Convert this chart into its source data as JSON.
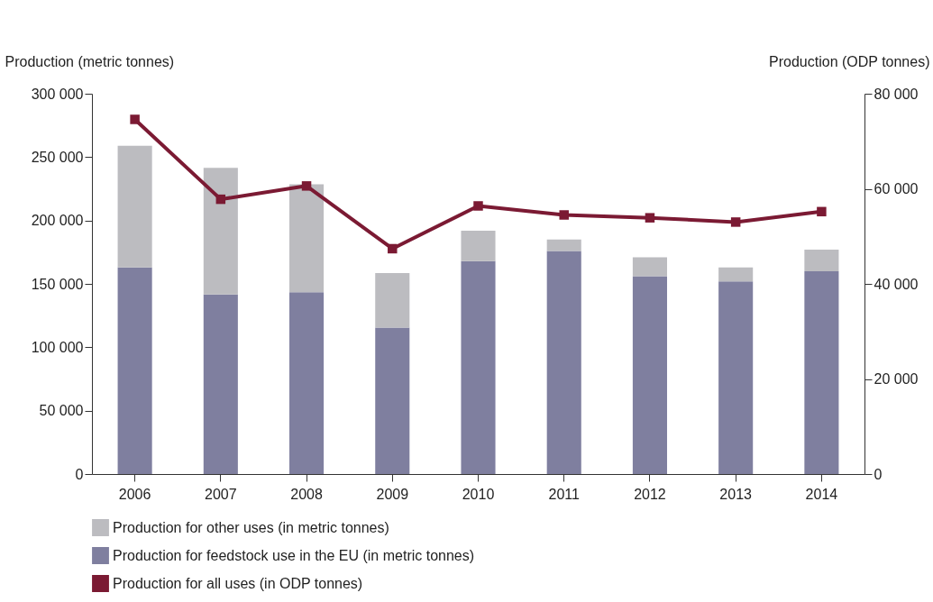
{
  "chart_data": {
    "type": "bar",
    "stacked": true,
    "categories": [
      "2006",
      "2007",
      "2008",
      "2009",
      "2010",
      "2011",
      "2012",
      "2013",
      "2014"
    ],
    "ylabel": "Production (metric tonnes)",
    "y2label": "Production (ODP tonnes)",
    "series": [
      {
        "name": "Production for feedstock use in the EU (in metric tonnes)",
        "color": "#7f7f9f",
        "values": [
          163000,
          141600,
          143500,
          115600,
          168000,
          176000,
          156000,
          152000,
          160000
        ]
      },
      {
        "name": "Production for other uses (in metric tonnes)",
        "color": "#bcbcc0",
        "values": [
          96000,
          100000,
          85000,
          43000,
          24000,
          9000,
          15000,
          11000,
          17000
        ]
      },
      {
        "name": "Production for all uses (in ODP tonnes)",
        "type": "line",
        "axis": "y2",
        "color": "#7b1a33",
        "marker": "square",
        "values": [
          74600,
          57800,
          60600,
          47400,
          56400,
          54500,
          53900,
          53000,
          55200
        ]
      }
    ],
    "ylim": [
      0,
      300000
    ],
    "yticks": [
      {
        "value": 0,
        "label": "0"
      },
      {
        "value": 50000,
        "label": "50 000"
      },
      {
        "value": 100000,
        "label": "100 000"
      },
      {
        "value": 150000,
        "label": "150 000"
      },
      {
        "value": 200000,
        "label": "200 000"
      },
      {
        "value": 250000,
        "label": "250 000"
      },
      {
        "value": 300000,
        "label": "300 000"
      }
    ],
    "y2lim": [
      0,
      80000
    ],
    "y2ticks": [
      {
        "value": 0,
        "label": "0"
      },
      {
        "value": 20000,
        "label": "20 000"
      },
      {
        "value": 40000,
        "label": "40 000"
      },
      {
        "value": 60000,
        "label": "60 000"
      },
      {
        "value": 80000,
        "label": "80 000"
      }
    ],
    "grid": false,
    "legend": "bottom"
  }
}
